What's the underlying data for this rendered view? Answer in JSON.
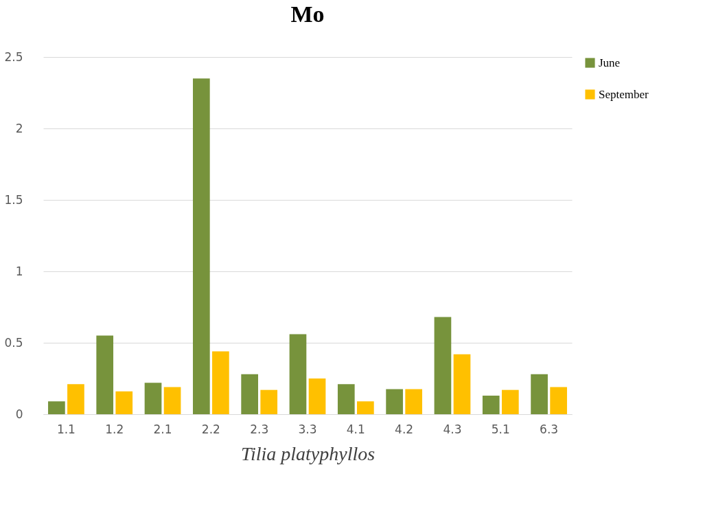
{
  "chart_data": {
    "type": "bar",
    "title": "Mo",
    "xlabel": "Tilia platyphyllos",
    "categories": [
      "1.1",
      "1.2",
      "2.1",
      "2.2",
      "2.3",
      "3.3",
      "4.1",
      "4.2",
      "4.3",
      "5.1",
      "6.3"
    ],
    "series": [
      {
        "name": "June",
        "color": "#77933c",
        "values": [
          0.09,
          0.55,
          0.22,
          2.35,
          0.28,
          0.56,
          0.21,
          0.175,
          0.68,
          0.13,
          0.28
        ]
      },
      {
        "name": "September",
        "color": "#ffc000",
        "values": [
          0.21,
          0.16,
          0.19,
          0.44,
          0.17,
          0.25,
          0.09,
          0.175,
          0.42,
          0.17,
          0.19
        ]
      }
    ],
    "ylim": [
      0,
      2.5
    ],
    "yticks": [
      0,
      0.5,
      1,
      1.5,
      2,
      2.5
    ],
    "grid": "y",
    "legend": "right"
  }
}
